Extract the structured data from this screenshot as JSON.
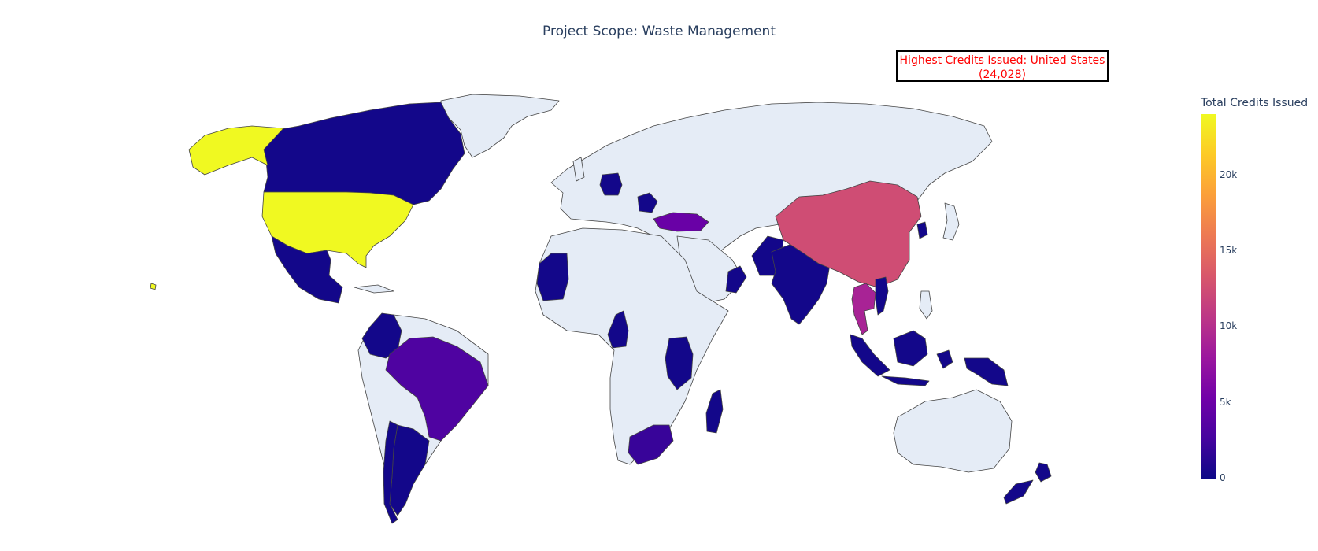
{
  "title": "Project Scope: Waste Management",
  "annotation": {
    "line1": "Highest Credits Issued: United States",
    "line2": "(24,028)"
  },
  "colorbar": {
    "title": "Total Credits Issued",
    "ticks": [
      "0",
      "5k",
      "10k",
      "15k",
      "20k"
    ],
    "colorscale": [
      "#0d0887",
      "#46039f",
      "#7201a8",
      "#9c179e",
      "#bd3786",
      "#d8576b",
      "#ed7953",
      "#fb9f3a",
      "#fdca26",
      "#f0f921"
    ],
    "no_data_color": "#e5ecf6"
  },
  "map_data": {
    "projection": "natural-earth",
    "metric": "Total Credits Issued",
    "range": [
      0,
      24028
    ],
    "highlight": {
      "country": "United States",
      "value": 24028
    },
    "countries": [
      {
        "name": "United States",
        "value": 24028
      },
      {
        "name": "China",
        "value": 12500
      },
      {
        "name": "Thailand",
        "value": 9000
      },
      {
        "name": "Turkey",
        "value": 4800
      },
      {
        "name": "Brazil",
        "value": 3200
      },
      {
        "name": "South Africa",
        "value": 2000
      },
      {
        "name": "Canada",
        "value": 300
      },
      {
        "name": "Mexico",
        "value": 300
      },
      {
        "name": "Colombia",
        "value": 300
      },
      {
        "name": "Chile",
        "value": 300
      },
      {
        "name": "Argentina",
        "value": 300
      },
      {
        "name": "Germany",
        "value": 300
      },
      {
        "name": "Serbia",
        "value": 300
      },
      {
        "name": "Mauritania",
        "value": 300
      },
      {
        "name": "Cameroon",
        "value": 300
      },
      {
        "name": "Tanzania",
        "value": 300
      },
      {
        "name": "Kenya",
        "value": 300
      },
      {
        "name": "Madagascar",
        "value": 300
      },
      {
        "name": "Oman",
        "value": 300
      },
      {
        "name": "Pakistan",
        "value": 300
      },
      {
        "name": "India",
        "value": 300
      },
      {
        "name": "Vietnam",
        "value": 300
      },
      {
        "name": "Malaysia",
        "value": 300
      },
      {
        "name": "Indonesia",
        "value": 300
      },
      {
        "name": "Papua New Guinea",
        "value": 300
      },
      {
        "name": "South Korea",
        "value": 300
      },
      {
        "name": "New Zealand",
        "value": 300
      }
    ]
  }
}
